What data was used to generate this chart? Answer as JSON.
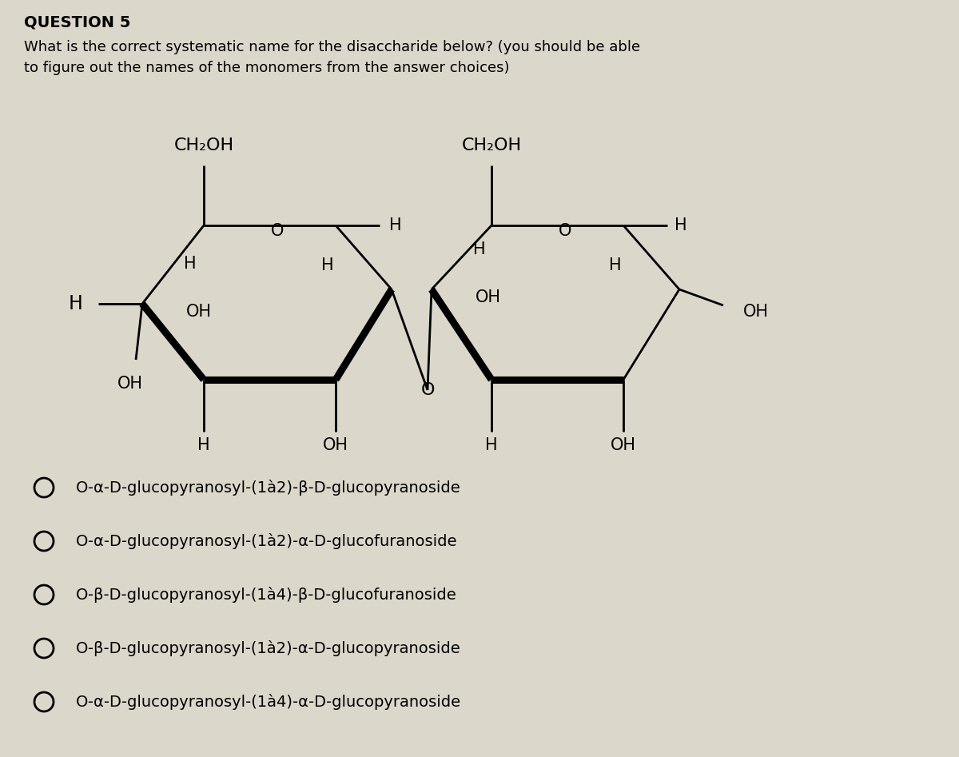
{
  "title": "QUESTION 5",
  "question": "What is the correct systematic name for the disaccharide below? (you should be able\nto figure out the names of the monomers from the answer choices)",
  "answer_choices": [
    "O-α-D-glucopyranosyl-(1à2)-β-D-glucopyranoside",
    "O-α-D-glucopyranosyl-(1à2)-α-D-glucofuranoside",
    "O-β-D-glucopyranosyl-(1à4)-β-D-glucofuranoside",
    "O-β-D-glucopyranosyl-(1à2)-α-D-glucopyranoside",
    "O-α-D-glucopyranosyl-(1à4)-α-D-glucopyranoside"
  ],
  "bg_color": "#dbd7cb",
  "text_color": "#000000",
  "title_fontsize": 14,
  "question_fontsize": 13,
  "choice_fontsize": 14,
  "struct_fontsize": 15
}
